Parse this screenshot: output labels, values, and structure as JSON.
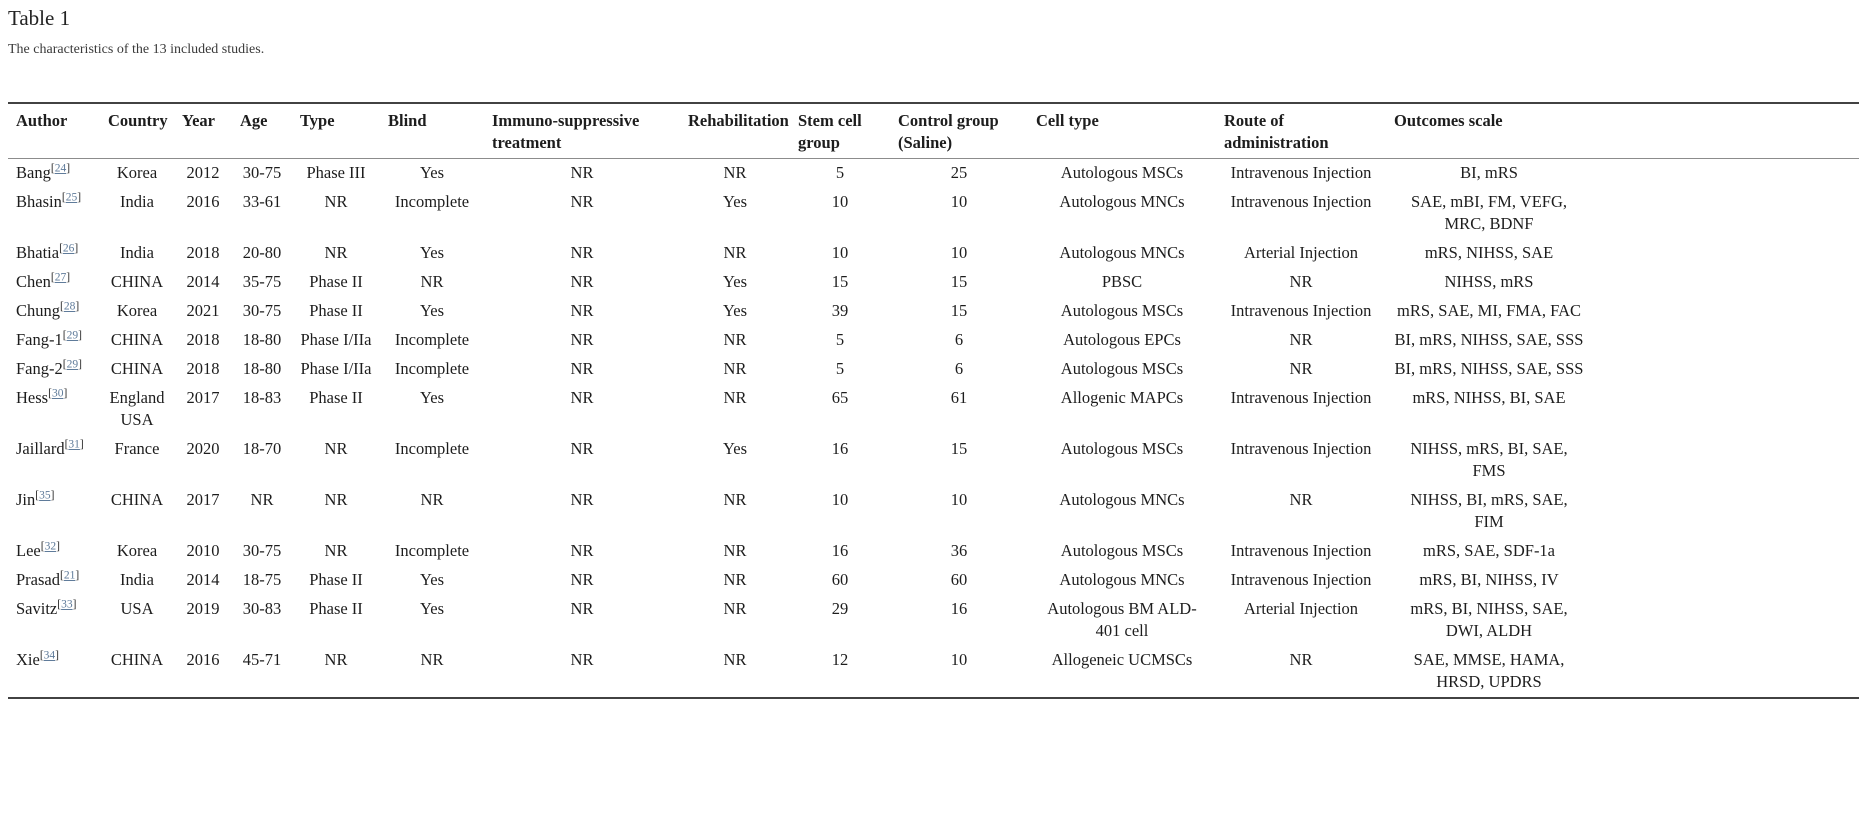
{
  "page": {
    "title": "Table 1",
    "caption": "The characteristics of the 13 included studies."
  },
  "colors": {
    "text": "#1d1d1d",
    "citation_link": "#5f7b9a",
    "table_rule": "#424242",
    "header_rule": "#8c8c8c"
  },
  "table": {
    "citation_format": {
      "open": "[",
      "close": "]"
    },
    "columns": [
      "Author",
      "Country",
      "Year",
      "Age",
      "Type",
      "Blind",
      "Immuno-suppressive treatment",
      "Rehabilitation",
      "Stem cell group",
      "Control group (Saline)",
      "Cell type",
      "Route of administration",
      "Outcomes scale"
    ],
    "rows": [
      {
        "author": "Bang",
        "ref": "24",
        "country": "Korea",
        "year": "2012",
        "age": "30-75",
        "type": "Phase III",
        "blind": "Yes",
        "immuno": "NR",
        "rehab": "NR",
        "stem": "5",
        "control": "25",
        "cell": "Autologous MSCs",
        "route": "Intravenous Injection",
        "outcomes": "BI, mRS"
      },
      {
        "author": "Bhasin",
        "ref": "25",
        "country": "India",
        "year": "2016",
        "age": "33-61",
        "type": "NR",
        "blind": "Incomplete",
        "immuno": "NR",
        "rehab": "Yes",
        "stem": "10",
        "control": "10",
        "cell": "Autologous MNCs",
        "route": "Intravenous Injection",
        "outcomes": "SAE, mBI, FM, VEFG, MRC, BDNF"
      },
      {
        "author": "Bhatia",
        "ref": "26",
        "country": "India",
        "year": "2018",
        "age": "20-80",
        "type": "NR",
        "blind": "Yes",
        "immuno": "NR",
        "rehab": "NR",
        "stem": "10",
        "control": "10",
        "cell": "Autologous MNCs",
        "route": "Arterial Injection",
        "outcomes": "mRS, NIHSS, SAE"
      },
      {
        "author": "Chen",
        "ref": "27",
        "country": "CHINA",
        "year": "2014",
        "age": "35-75",
        "type": "Phase II",
        "blind": "NR",
        "immuno": "NR",
        "rehab": "Yes",
        "stem": "15",
        "control": "15",
        "cell": "PBSC",
        "route": "NR",
        "outcomes": "NIHSS, mRS"
      },
      {
        "author": "Chung",
        "ref": "28",
        "country": "Korea",
        "year": "2021",
        "age": "30-75",
        "type": "Phase II",
        "blind": "Yes",
        "immuno": "NR",
        "rehab": "Yes",
        "stem": "39",
        "control": "15",
        "cell": "Autologous MSCs",
        "route": "Intravenous Injection",
        "outcomes": "mRS, SAE, MI, FMA, FAC"
      },
      {
        "author": "Fang-1",
        "ref": "29",
        "country": "CHINA",
        "year": "2018",
        "age": "18-80",
        "type": "Phase I/IIa",
        "blind": "Incomplete",
        "immuno": "NR",
        "rehab": "NR",
        "stem": "5",
        "control": "6",
        "cell": "Autologous EPCs",
        "route": "NR",
        "outcomes": "BI, mRS, NIHSS, SAE, SSS"
      },
      {
        "author": "Fang-2",
        "ref": "29",
        "country": "CHINA",
        "year": "2018",
        "age": "18-80",
        "type": "Phase I/IIa",
        "blind": "Incomplete",
        "immuno": "NR",
        "rehab": "NR",
        "stem": "5",
        "control": "6",
        "cell": "Autologous MSCs",
        "route": "NR",
        "outcomes": "BI, mRS, NIHSS, SAE, SSS"
      },
      {
        "author": "Hess",
        "ref": "30",
        "country": "England USA",
        "year": "2017",
        "age": "18-83",
        "type": "Phase II",
        "blind": "Yes",
        "immuno": "NR",
        "rehab": "NR",
        "stem": "65",
        "control": "61",
        "cell": "Allogenic MAPCs",
        "route": "Intravenous Injection",
        "outcomes": "mRS, NIHSS, BI, SAE"
      },
      {
        "author": "Jaillard",
        "ref": "31",
        "country": "France",
        "year": "2020",
        "age": "18-70",
        "type": "NR",
        "blind": "Incomplete",
        "immuno": "NR",
        "rehab": "Yes",
        "stem": "16",
        "control": "15",
        "cell": "Autologous MSCs",
        "route": "Intravenous Injection",
        "outcomes": "NIHSS, mRS, BI, SAE, FMS"
      },
      {
        "author": "Jin",
        "ref": "35",
        "country": "CHINA",
        "year": "2017",
        "age": "NR",
        "type": "NR",
        "blind": "NR",
        "immuno": "NR",
        "rehab": "NR",
        "stem": "10",
        "control": "10",
        "cell": "Autologous MNCs",
        "route": "NR",
        "outcomes": "NIHSS, BI, mRS, SAE, FIM"
      },
      {
        "author": "Lee",
        "ref": "32",
        "country": "Korea",
        "year": "2010",
        "age": "30-75",
        "type": "NR",
        "blind": "Incomplete",
        "immuno": "NR",
        "rehab": "NR",
        "stem": "16",
        "control": "36",
        "cell": "Autologous MSCs",
        "route": "Intravenous Injection",
        "outcomes": "mRS, SAE, SDF-1a"
      },
      {
        "author": "Prasad",
        "ref": "21",
        "country": "India",
        "year": "2014",
        "age": "18-75",
        "type": "Phase II",
        "blind": "Yes",
        "immuno": "NR",
        "rehab": "NR",
        "stem": "60",
        "control": "60",
        "cell": "Autologous MNCs",
        "route": "Intravenous Injection",
        "outcomes": "mRS, BI, NIHSS, IV"
      },
      {
        "author": "Savitz",
        "ref": "33",
        "country": "USA",
        "year": "2019",
        "age": "30-83",
        "type": "Phase II",
        "blind": "Yes",
        "immuno": "NR",
        "rehab": "NR",
        "stem": "29",
        "control": "16",
        "cell": "Autologous BM ALD-401 cell",
        "route": "Arterial Injection",
        "outcomes": "mRS, BI, NIHSS, SAE, DWI, ALDH"
      },
      {
        "author": "Xie",
        "ref": "34",
        "country": "CHINA",
        "year": "2016",
        "age": "45-71",
        "type": "NR",
        "blind": "NR",
        "immuno": "NR",
        "rehab": "NR",
        "stem": "12",
        "control": "10",
        "cell": "Allogeneic UCMSCs",
        "route": "NR",
        "outcomes": "SAE, MMSE, HAMA, HRSD, UPDRS"
      }
    ]
  }
}
